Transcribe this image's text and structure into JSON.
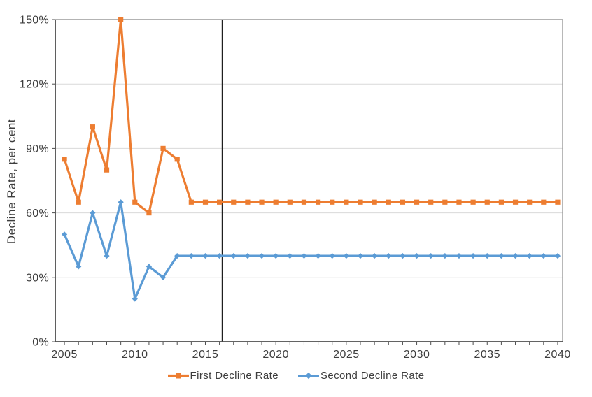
{
  "chart_data": {
    "type": "line",
    "title": "",
    "xlabel": "",
    "ylabel": "Decline Rate, per cent",
    "xlim": [
      2004.35,
      2040.35
    ],
    "ylim": [
      0,
      150
    ],
    "grid": "horizontal",
    "legend_position": "bottom",
    "y_ticks": [
      {
        "value": 0,
        "label": "0%"
      },
      {
        "value": 30,
        "label": "30%"
      },
      {
        "value": 60,
        "label": "60%"
      },
      {
        "value": 90,
        "label": "90%"
      },
      {
        "value": 120,
        "label": "120%"
      },
      {
        "value": 150,
        "label": "150%"
      }
    ],
    "x_tick_labels": [
      "2005",
      "2010",
      "2015",
      "2020",
      "2025",
      "2030",
      "2035",
      "2040"
    ],
    "x_minor_tick_years": [
      2005,
      2006,
      2007,
      2008,
      2009,
      2010,
      2011,
      2012,
      2013,
      2014,
      2015,
      2016,
      2017,
      2018,
      2019,
      2020,
      2021,
      2022,
      2023,
      2024,
      2025,
      2026,
      2027,
      2028,
      2029,
      2030,
      2031,
      2032,
      2033,
      2034,
      2035,
      2036,
      2037,
      2038,
      2039,
      2040
    ],
    "annotations": {
      "vertical_line_x": 2016.2,
      "vertical_line_color": "#1f1f1f"
    },
    "x": [
      2005,
      2006,
      2007,
      2008,
      2009,
      2010,
      2011,
      2012,
      2013,
      2014,
      2015,
      2016,
      2017,
      2018,
      2019,
      2020,
      2021,
      2022,
      2023,
      2024,
      2025,
      2026,
      2027,
      2028,
      2029,
      2030,
      2031,
      2032,
      2033,
      2034,
      2035,
      2036,
      2037,
      2038,
      2039,
      2040
    ],
    "series": [
      {
        "name": "First Decline Rate",
        "color": "#ED7D31",
        "marker": "square",
        "values": [
          85,
          65,
          100,
          80,
          150,
          65,
          60,
          90,
          85,
          65,
          65,
          65,
          65,
          65,
          65,
          65,
          65,
          65,
          65,
          65,
          65,
          65,
          65,
          65,
          65,
          65,
          65,
          65,
          65,
          65,
          65,
          65,
          65,
          65,
          65,
          65
        ]
      },
      {
        "name": "Second Decline Rate",
        "color": "#5B9BD5",
        "marker": "diamond",
        "values": [
          50,
          35,
          60,
          40,
          65,
          20,
          35,
          30,
          40,
          40,
          40,
          40,
          40,
          40,
          40,
          40,
          40,
          40,
          40,
          40,
          40,
          40,
          40,
          40,
          40,
          40,
          40,
          40,
          40,
          40,
          40,
          40,
          40,
          40,
          40,
          40
        ]
      }
    ],
    "axis_colors": {
      "axis_line": "#4d4d4d",
      "plot_border": "#9a9a9a",
      "gridline": "#d9d9d9",
      "tick_label": "#3d3d3d"
    }
  }
}
